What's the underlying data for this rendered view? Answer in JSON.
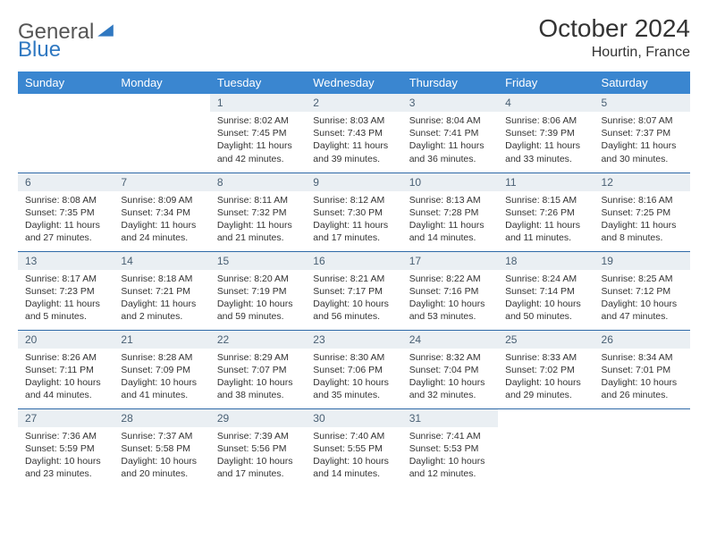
{
  "logo": {
    "word1": "General",
    "word2": "Blue"
  },
  "title": "October 2024",
  "location": "Hourtin, France",
  "header_bg": "#3a86d0",
  "daynum_bg": "#eaeff3",
  "rule_color": "#2f6aa8",
  "day_headers": [
    "Sunday",
    "Monday",
    "Tuesday",
    "Wednesday",
    "Thursday",
    "Friday",
    "Saturday"
  ],
  "weeks": [
    [
      null,
      null,
      {
        "n": "1",
        "sr": "8:02 AM",
        "ss": "7:45 PM",
        "dl": "11 hours and 42 minutes."
      },
      {
        "n": "2",
        "sr": "8:03 AM",
        "ss": "7:43 PM",
        "dl": "11 hours and 39 minutes."
      },
      {
        "n": "3",
        "sr": "8:04 AM",
        "ss": "7:41 PM",
        "dl": "11 hours and 36 minutes."
      },
      {
        "n": "4",
        "sr": "8:06 AM",
        "ss": "7:39 PM",
        "dl": "11 hours and 33 minutes."
      },
      {
        "n": "5",
        "sr": "8:07 AM",
        "ss": "7:37 PM",
        "dl": "11 hours and 30 minutes."
      }
    ],
    [
      {
        "n": "6",
        "sr": "8:08 AM",
        "ss": "7:35 PM",
        "dl": "11 hours and 27 minutes."
      },
      {
        "n": "7",
        "sr": "8:09 AM",
        "ss": "7:34 PM",
        "dl": "11 hours and 24 minutes."
      },
      {
        "n": "8",
        "sr": "8:11 AM",
        "ss": "7:32 PM",
        "dl": "11 hours and 21 minutes."
      },
      {
        "n": "9",
        "sr": "8:12 AM",
        "ss": "7:30 PM",
        "dl": "11 hours and 17 minutes."
      },
      {
        "n": "10",
        "sr": "8:13 AM",
        "ss": "7:28 PM",
        "dl": "11 hours and 14 minutes."
      },
      {
        "n": "11",
        "sr": "8:15 AM",
        "ss": "7:26 PM",
        "dl": "11 hours and 11 minutes."
      },
      {
        "n": "12",
        "sr": "8:16 AM",
        "ss": "7:25 PM",
        "dl": "11 hours and 8 minutes."
      }
    ],
    [
      {
        "n": "13",
        "sr": "8:17 AM",
        "ss": "7:23 PM",
        "dl": "11 hours and 5 minutes."
      },
      {
        "n": "14",
        "sr": "8:18 AM",
        "ss": "7:21 PM",
        "dl": "11 hours and 2 minutes."
      },
      {
        "n": "15",
        "sr": "8:20 AM",
        "ss": "7:19 PM",
        "dl": "10 hours and 59 minutes."
      },
      {
        "n": "16",
        "sr": "8:21 AM",
        "ss": "7:17 PM",
        "dl": "10 hours and 56 minutes."
      },
      {
        "n": "17",
        "sr": "8:22 AM",
        "ss": "7:16 PM",
        "dl": "10 hours and 53 minutes."
      },
      {
        "n": "18",
        "sr": "8:24 AM",
        "ss": "7:14 PM",
        "dl": "10 hours and 50 minutes."
      },
      {
        "n": "19",
        "sr": "8:25 AM",
        "ss": "7:12 PM",
        "dl": "10 hours and 47 minutes."
      }
    ],
    [
      {
        "n": "20",
        "sr": "8:26 AM",
        "ss": "7:11 PM",
        "dl": "10 hours and 44 minutes."
      },
      {
        "n": "21",
        "sr": "8:28 AM",
        "ss": "7:09 PM",
        "dl": "10 hours and 41 minutes."
      },
      {
        "n": "22",
        "sr": "8:29 AM",
        "ss": "7:07 PM",
        "dl": "10 hours and 38 minutes."
      },
      {
        "n": "23",
        "sr": "8:30 AM",
        "ss": "7:06 PM",
        "dl": "10 hours and 35 minutes."
      },
      {
        "n": "24",
        "sr": "8:32 AM",
        "ss": "7:04 PM",
        "dl": "10 hours and 32 minutes."
      },
      {
        "n": "25",
        "sr": "8:33 AM",
        "ss": "7:02 PM",
        "dl": "10 hours and 29 minutes."
      },
      {
        "n": "26",
        "sr": "8:34 AM",
        "ss": "7:01 PM",
        "dl": "10 hours and 26 minutes."
      }
    ],
    [
      {
        "n": "27",
        "sr": "7:36 AM",
        "ss": "5:59 PM",
        "dl": "10 hours and 23 minutes."
      },
      {
        "n": "28",
        "sr": "7:37 AM",
        "ss": "5:58 PM",
        "dl": "10 hours and 20 minutes."
      },
      {
        "n": "29",
        "sr": "7:39 AM",
        "ss": "5:56 PM",
        "dl": "10 hours and 17 minutes."
      },
      {
        "n": "30",
        "sr": "7:40 AM",
        "ss": "5:55 PM",
        "dl": "10 hours and 14 minutes."
      },
      {
        "n": "31",
        "sr": "7:41 AM",
        "ss": "5:53 PM",
        "dl": "10 hours and 12 minutes."
      },
      null,
      null
    ]
  ],
  "labels": {
    "sunrise": "Sunrise: ",
    "sunset": "Sunset: ",
    "daylight": "Daylight: "
  }
}
